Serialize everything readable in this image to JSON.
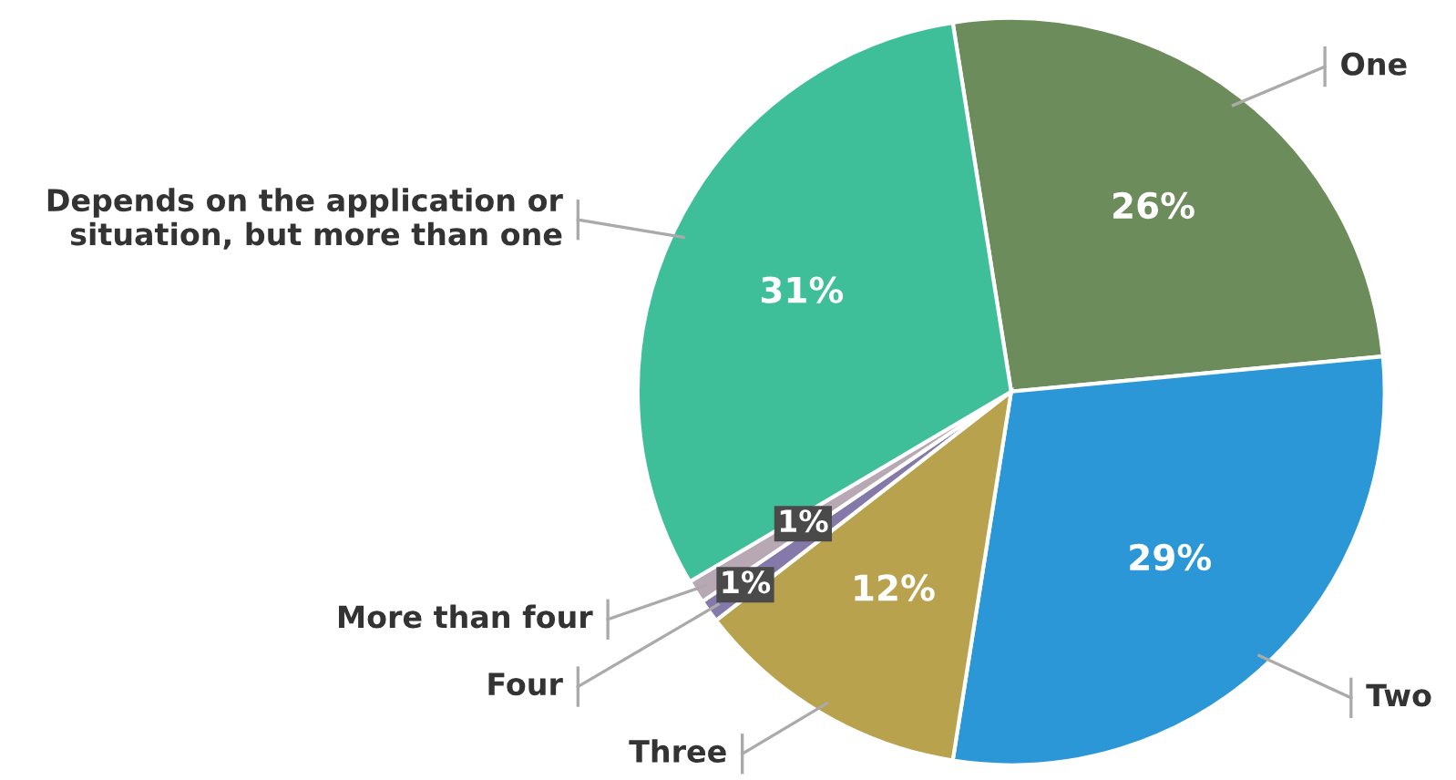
{
  "chart_data": {
    "type": "pie",
    "categories": [
      "One",
      "Two",
      "Three",
      "Four",
      "More than four",
      "Depends on the application or\nsituation, but more than one"
    ],
    "values": [
      26,
      29,
      12,
      1,
      1,
      31
    ],
    "value_labels": [
      "26%",
      "29%",
      "12%",
      "1%",
      "1%",
      "31%"
    ],
    "colors": [
      "#6d8c5c",
      "#2b97d6",
      "#b9a24e",
      "#8579a9",
      "#b8a8b4",
      "#3fbe9a"
    ]
  }
}
